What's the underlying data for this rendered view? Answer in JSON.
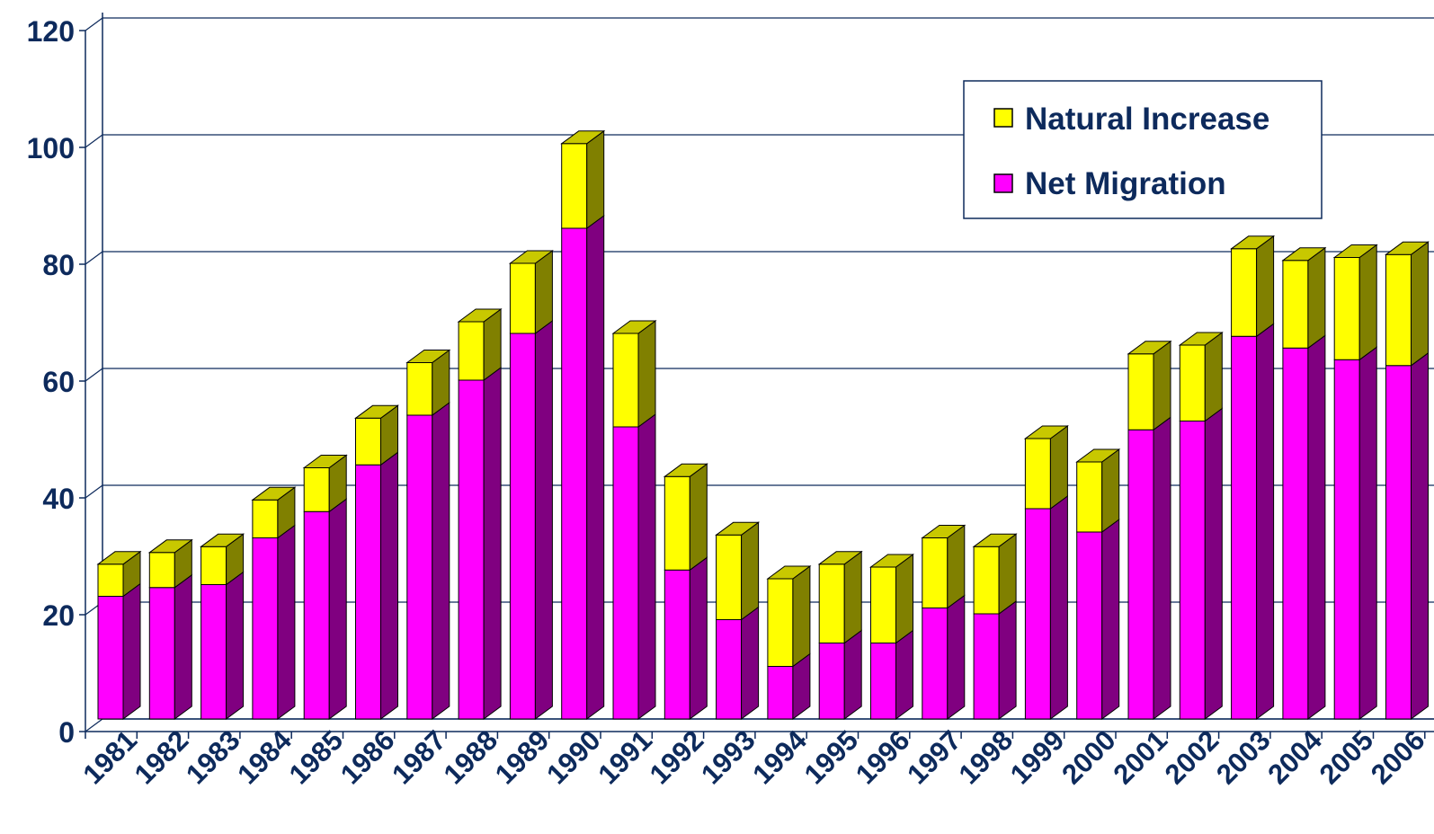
{
  "chart_data": {
    "type": "bar",
    "stacked": true,
    "three_d": true,
    "title": "",
    "xlabel": "",
    "ylabel": "",
    "ylim": [
      0,
      120
    ],
    "yticks": [
      "0",
      "20",
      "40",
      "60",
      "80",
      "100",
      "120"
    ],
    "grid": true,
    "legend_position": "top-right",
    "categories": [
      "1981",
      "1982",
      "1983",
      "1984",
      "1985",
      "1986",
      "1987",
      "1988",
      "1989",
      "1990",
      "1991",
      "1992",
      "1993",
      "1994",
      "1995",
      "1996",
      "1997",
      "1998",
      "1999",
      "2000",
      "2001",
      "2002",
      "2003",
      "2004",
      "2005",
      "2006"
    ],
    "series": [
      {
        "name": "Net Migration",
        "color": "#ff00ff",
        "side_color": "#800080",
        "values": [
          21,
          22.5,
          23,
          31,
          35.5,
          43.5,
          52,
          58,
          66,
          84,
          50,
          25.5,
          17,
          9,
          13,
          13,
          19,
          18,
          36,
          32,
          49.5,
          51,
          65.5,
          63.5,
          61.5,
          60.5
        ]
      },
      {
        "name": "Natural Increase",
        "color": "#ffff00",
        "side_color": "#808000",
        "values": [
          5.5,
          6,
          6.5,
          6.5,
          7.5,
          8,
          9,
          10,
          12,
          14.5,
          16,
          16,
          14.5,
          15,
          13.5,
          13,
          12,
          11.5,
          12,
          12,
          13,
          13,
          15,
          15,
          17.5,
          19
        ]
      }
    ]
  },
  "legend": {
    "items": [
      {
        "label": "Natural Increase",
        "color": "#ffff00"
      },
      {
        "label": "Net Migration",
        "color": "#ff00ff"
      }
    ]
  }
}
